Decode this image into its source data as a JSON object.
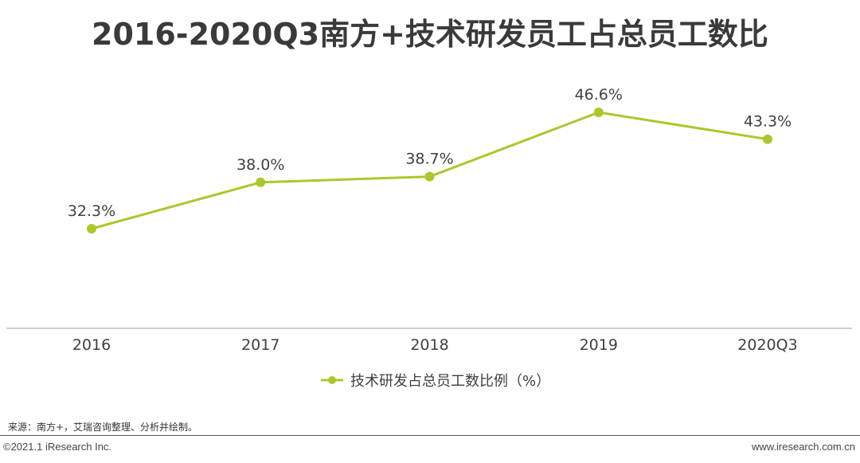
{
  "header": {
    "title": "2016-2020Q3南方+技术研发员工占总员工数比"
  },
  "chart_data": {
    "type": "line",
    "categories": [
      "2016",
      "2017",
      "2018",
      "2019",
      "2020Q3"
    ],
    "series": [
      {
        "name": "技术研发占总员工数比例（%）",
        "values": [
          32.3,
          38.0,
          38.7,
          46.6,
          43.3
        ],
        "labels": [
          "32.3%",
          "38.0%",
          "38.7%",
          "46.6%",
          "43.3%"
        ],
        "color": "#a8c92b"
      }
    ],
    "title": "2016-2020Q3南方+技术研发员工占总员工数比",
    "xlabel": "",
    "ylabel": "",
    "ylim": [
      0,
      50
    ],
    "grid": false,
    "legend_position": "bottom"
  },
  "footer": {
    "source": "来源：南方+，艾瑞咨询整理、分析并绘制。",
    "copyright": "©2021.1 iResearch Inc.",
    "website": "www.iresearch.com.cn"
  }
}
